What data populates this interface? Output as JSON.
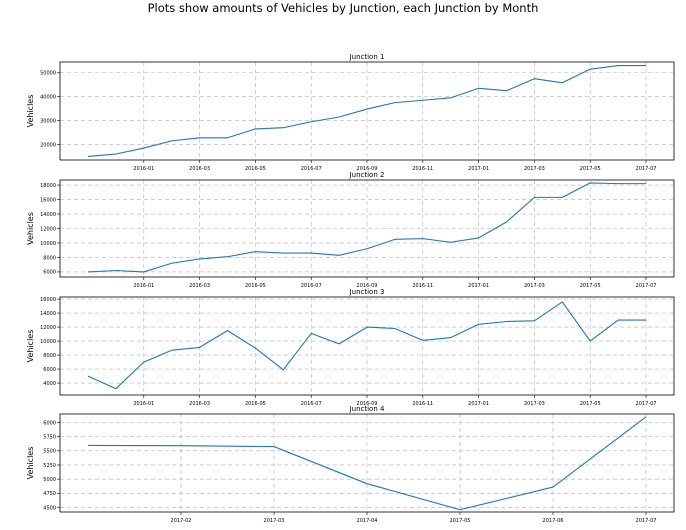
{
  "figure": {
    "suptitle": "Plots show amounts of Vehicles by Junction, each Junction by Month"
  },
  "colors": {
    "line": "#1f77b4",
    "grid": "#b0b0b0"
  },
  "chart_data": [
    {
      "type": "line",
      "title": "Junction 1",
      "ylabel": "Vehicles",
      "xlabel": "",
      "grid": true,
      "x_ticks": [
        "2016-01",
        "2016-03",
        "2016-05",
        "2016-07",
        "2016-09",
        "2016-11",
        "2017-01",
        "2017-03",
        "2017-05",
        "2017-07"
      ],
      "y_ticks": [
        20000,
        30000,
        40000,
        50000
      ],
      "ylim": [
        13500,
        54500
      ],
      "x": [
        "2015-11",
        "2015-12",
        "2016-01",
        "2016-02",
        "2016-03",
        "2016-04",
        "2016-05",
        "2016-06",
        "2016-07",
        "2016-08",
        "2016-09",
        "2016-10",
        "2016-11",
        "2016-12",
        "2017-01",
        "2017-02",
        "2017-03",
        "2017-04",
        "2017-05",
        "2017-06",
        "2017-07"
      ],
      "series": [
        {
          "values": [
            15000,
            16000,
            18500,
            21500,
            22800,
            22800,
            26500,
            27000,
            29500,
            31500,
            34800,
            37500,
            38500,
            39500,
            43500,
            42500,
            47500,
            45800,
            51500,
            53000,
            53000
          ]
        }
      ]
    },
    {
      "type": "line",
      "title": "Junction 2",
      "ylabel": "Vehicles",
      "xlabel": "",
      "grid": true,
      "x_ticks": [
        "2016-01",
        "2016-03",
        "2016-05",
        "2016-07",
        "2016-09",
        "2016-11",
        "2017-01",
        "2017-03",
        "2017-05",
        "2017-07"
      ],
      "y_ticks": [
        6000,
        8000,
        10000,
        12000,
        14000,
        16000,
        18000
      ],
      "ylim": [
        5300,
        18700
      ],
      "x": [
        "2015-11",
        "2015-12",
        "2016-01",
        "2016-02",
        "2016-03",
        "2016-04",
        "2016-05",
        "2016-06",
        "2016-07",
        "2016-08",
        "2016-09",
        "2016-10",
        "2016-11",
        "2016-12",
        "2017-01",
        "2017-02",
        "2017-03",
        "2017-04",
        "2017-05",
        "2017-06",
        "2017-07"
      ],
      "series": [
        {
          "values": [
            6000,
            6200,
            6000,
            7200,
            7800,
            8100,
            8800,
            8600,
            8600,
            8300,
            9200,
            10500,
            10600,
            10100,
            10700,
            12900,
            16300,
            16300,
            18300,
            18200,
            18200
          ]
        }
      ]
    },
    {
      "type": "line",
      "title": "Junction 3",
      "ylabel": "Vehicles",
      "xlabel": "",
      "grid": true,
      "x_ticks": [
        "2016-01",
        "2016-03",
        "2016-05",
        "2016-07",
        "2016-09",
        "2016-11",
        "2017-01",
        "2017-03",
        "2017-05",
        "2017-07"
      ],
      "y_ticks": [
        4000,
        6000,
        8000,
        10000,
        12000,
        14000,
        16000
      ],
      "ylim": [
        2300,
        16300
      ],
      "x": [
        "2015-11",
        "2015-12",
        "2016-01",
        "2016-02",
        "2016-03",
        "2016-04",
        "2016-05",
        "2016-06",
        "2016-07",
        "2016-08",
        "2016-09",
        "2016-10",
        "2016-11",
        "2016-12",
        "2017-01",
        "2017-02",
        "2017-03",
        "2017-04",
        "2017-05",
        "2017-06",
        "2017-07"
      ],
      "series": [
        {
          "values": [
            5000,
            3200,
            7000,
            8700,
            9100,
            11500,
            9000,
            5900,
            11100,
            9600,
            12000,
            11800,
            10100,
            10500,
            12400,
            12800,
            12900,
            15600,
            10000,
            13000,
            13000
          ]
        }
      ]
    },
    {
      "type": "line",
      "title": "Junction 4",
      "ylabel": "Vehicles",
      "xlabel": "",
      "grid": true,
      "x_ticks": [
        "2017-02",
        "2017-03",
        "2017-04",
        "2017-05",
        "2017-06",
        "2017-07"
      ],
      "y_ticks": [
        4500,
        4750,
        5000,
        5250,
        5500,
        5750,
        6000
      ],
      "ylim": [
        4420,
        6150
      ],
      "x": [
        "2017-01",
        "2017-02",
        "2017-03",
        "2017-04",
        "2017-05",
        "2017-06",
        "2017-07"
      ],
      "series": [
        {
          "values": [
            5595,
            5590,
            5575,
            4920,
            4460,
            4860,
            6100
          ]
        }
      ]
    }
  ]
}
